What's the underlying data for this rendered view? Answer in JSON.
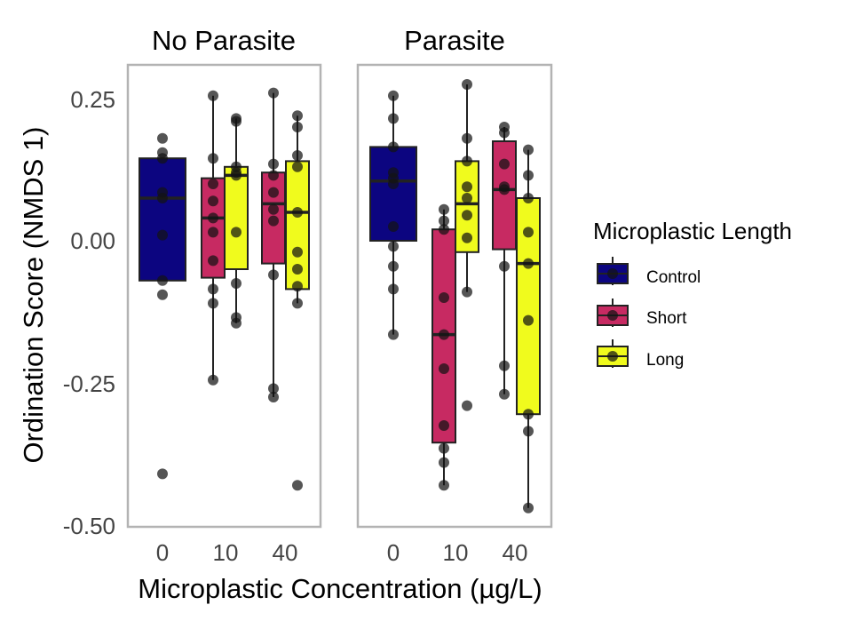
{
  "chart_data": {
    "type": "boxplot",
    "xlabel": "Microplastic Concentration (µg/L)",
    "ylabel": "Ordination Score (NMDS 1)",
    "yticks": [
      "0.25",
      "0.00",
      "-0.25",
      "-0.50"
    ],
    "ylim": [
      -0.5,
      0.3
    ],
    "legend": {
      "title": "Microplastic Length",
      "position": "right",
      "items": [
        {
          "name": "Control",
          "color": "#0c0580"
        },
        {
          "name": "Short",
          "color": "#c72a62"
        },
        {
          "name": "Long",
          "color": "#f0fb1d"
        }
      ]
    },
    "panels": [
      {
        "title": "No Parasite",
        "categories": [
          "0",
          "10",
          "40"
        ],
        "boxes": [
          {
            "category": "0",
            "group": "Control",
            "q1": -0.07,
            "median": 0.075,
            "q3": 0.145,
            "whisker_low": -0.07,
            "whisker_high": 0.145,
            "points": [
              0.18,
              0.155,
              0.145,
              0.085,
              0.075,
              0.01,
              -0.07,
              -0.095,
              -0.41
            ]
          },
          {
            "category": "10",
            "group": "Short",
            "q1": -0.065,
            "median": 0.04,
            "q3": 0.11,
            "whisker_low": -0.245,
            "whisker_high": 0.255,
            "points": [
              0.255,
              0.145,
              0.1,
              0.07,
              0.04,
              0.015,
              -0.035,
              -0.085,
              -0.11,
              -0.245
            ]
          },
          {
            "category": "10",
            "group": "Long",
            "q1": -0.05,
            "median": 0.115,
            "q3": 0.13,
            "whisker_low": -0.145,
            "whisker_high": 0.215,
            "points": [
              0.215,
              0.21,
              0.13,
              0.12,
              0.115,
              0.015,
              -0.075,
              -0.135,
              -0.145
            ]
          },
          {
            "category": "40",
            "group": "Short",
            "q1": -0.04,
            "median": 0.065,
            "q3": 0.12,
            "whisker_low": -0.275,
            "whisker_high": 0.26,
            "points": [
              0.26,
              0.135,
              0.115,
              0.085,
              0.055,
              0.035,
              -0.06,
              -0.26,
              -0.275
            ]
          },
          {
            "category": "40",
            "group": "Long",
            "q1": -0.085,
            "median": 0.05,
            "q3": 0.14,
            "whisker_low": -0.11,
            "whisker_high": 0.22,
            "points": [
              0.22,
              0.2,
              0.15,
              0.13,
              0.05,
              -0.02,
              -0.05,
              -0.08,
              -0.11,
              -0.43
            ]
          }
        ]
      },
      {
        "title": "Parasite",
        "categories": [
          "0",
          "10",
          "40"
        ],
        "boxes": [
          {
            "category": "0",
            "group": "Control",
            "q1": 0.0,
            "median": 0.105,
            "q3": 0.165,
            "whisker_low": -0.165,
            "whisker_high": 0.255,
            "points": [
              0.255,
              0.215,
              0.165,
              0.12,
              0.11,
              0.1,
              0.025,
              -0.01,
              -0.045,
              -0.085,
              -0.165
            ]
          },
          {
            "category": "10",
            "group": "Short",
            "q1": -0.355,
            "median": -0.165,
            "q3": 0.02,
            "whisker_low": -0.43,
            "whisker_high": 0.055,
            "points": [
              0.055,
              0.035,
              0.02,
              -0.1,
              -0.165,
              -0.225,
              -0.325,
              -0.365,
              -0.39,
              -0.43
            ]
          },
          {
            "category": "10",
            "group": "Long",
            "q1": -0.02,
            "median": 0.065,
            "q3": 0.14,
            "whisker_low": -0.09,
            "whisker_high": 0.275,
            "points": [
              0.275,
              0.18,
              0.14,
              0.095,
              0.075,
              0.045,
              0.005,
              -0.09,
              -0.29
            ]
          },
          {
            "category": "40",
            "group": "Short",
            "q1": -0.015,
            "median": 0.09,
            "q3": 0.175,
            "whisker_low": -0.27,
            "whisker_high": 0.2,
            "points": [
              0.2,
              0.19,
              0.135,
              0.095,
              0.09,
              -0.045,
              -0.22,
              -0.27
            ]
          },
          {
            "category": "40",
            "group": "Long",
            "q1": -0.305,
            "median": -0.04,
            "q3": 0.075,
            "whisker_low": -0.47,
            "whisker_high": 0.16,
            "points": [
              0.16,
              0.115,
              0.075,
              0.015,
              -0.04,
              -0.14,
              -0.305,
              -0.335,
              -0.47
            ]
          }
        ]
      }
    ]
  }
}
